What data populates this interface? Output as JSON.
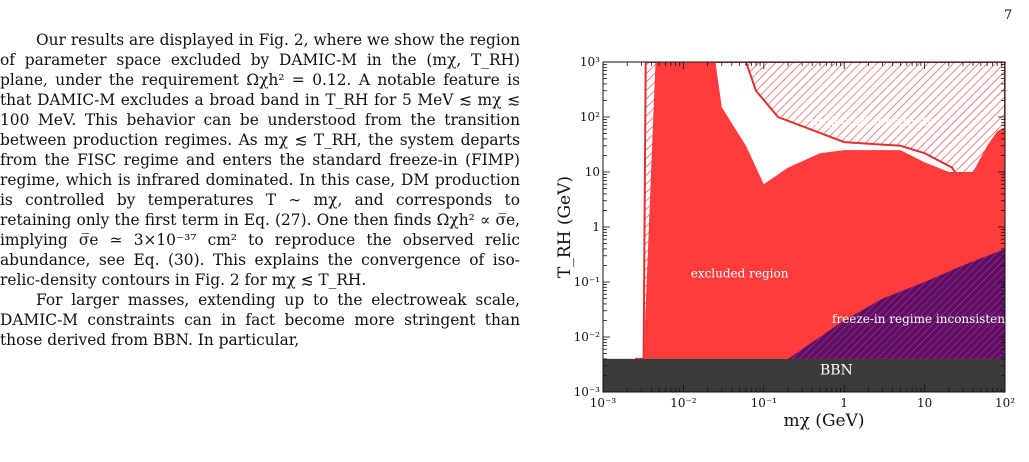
{
  "page_number": "7",
  "paragraphs": [
    "Our results are displayed in Fig. 2, where we show the region of parameter space excluded by DAMIC-M in the (mχ, T_RH) plane, under the requirement Ωχh² = 0.12. A notable feature is that DAMIC-M excludes a broad band in T_RH for 5 MeV ≲ mχ ≲ 100 MeV. This behavior can be understood from the transition between production regimes. As mχ ≲ T_RH, the system departs from the FISC regime and enters the standard freeze-in (FIMP) regime, which is infrared dominated. In this case, DM production is controlled by temperatures T ∼ mχ, and corresponds to retaining only the first term in Eq. (27). One then finds Ωχh² ∝ σ̅e, implying σ̅e ≃ 3×10⁻³⁷ cm² to reproduce the observed relic abundance, see Eq. (30). This explains the convergence of iso-relic-density contours in Fig. 2 for mχ ≲ T_RH.",
    "For larger masses, extending up to the electroweak scale, DAMIC-M constraints can in fact become more stringent than those derived from BBN. In particular,"
  ],
  "figure": {
    "ylabel": "T_RH (GeV)",
    "xlabel": "mχ (GeV)",
    "region_labels": {
      "projected": "projected sensitivity",
      "excluded": "excluded region",
      "freeze_in": "freeze-in regime inconsistent",
      "bbn": "BBN"
    },
    "colors": {
      "excluded": "#ff3b3b",
      "freeze_in": "#5e0f63",
      "bbn": "#3a3a3a",
      "hatch": "#d33"
    }
  },
  "chart_data": {
    "type": "area",
    "xscale": "log",
    "yscale": "log",
    "xlim": [
      0.001,
      100
    ],
    "ylim": [
      0.001,
      1000
    ],
    "xlabel": "mχ (GeV)",
    "ylabel": "T_RH (GeV)",
    "x_ticks": [
      {
        "v": 0.001,
        "label": "10⁻³"
      },
      {
        "v": 0.01,
        "label": "10⁻²"
      },
      {
        "v": 0.1,
        "label": "10⁻¹"
      },
      {
        "v": 1,
        "label": "1"
      },
      {
        "v": 10,
        "label": "10"
      },
      {
        "v": 100,
        "label": "10²"
      }
    ],
    "y_ticks": [
      {
        "v": 0.001,
        "label": "10⁻³"
      },
      {
        "v": 0.01,
        "label": "10⁻²"
      },
      {
        "v": 0.1,
        "label": "10⁻¹"
      },
      {
        "v": 1,
        "label": "1"
      },
      {
        "v": 10,
        "label": "10"
      },
      {
        "v": 100,
        "label": "10²"
      },
      {
        "v": 1000,
        "label": "10³"
      }
    ],
    "regions": [
      {
        "name": "projected sensitivity",
        "fill": "hatch",
        "points": [
          [
            0.0025,
            0.004
          ],
          [
            0.0032,
            0.004
          ],
          [
            0.0034,
            1000
          ],
          [
            100,
            1000
          ],
          [
            100,
            0.6
          ],
          [
            80,
            0.9
          ],
          [
            40,
            3
          ],
          [
            22,
            12
          ],
          [
            10,
            22
          ],
          [
            5,
            30
          ],
          [
            1,
            35
          ],
          [
            0.15,
            100
          ],
          [
            0.08,
            300
          ],
          [
            0.06,
            1000
          ],
          [
            0.0055,
            1000
          ],
          [
            0.0037,
            0.005
          ],
          [
            0.0035,
            0.004
          ]
        ]
      },
      {
        "name": "excluded region",
        "fill": "solid",
        "points": [
          [
            0.001,
            0.004
          ],
          [
            0.0032,
            0.004
          ],
          [
            0.0045,
            1000
          ],
          [
            0.025,
            1000
          ],
          [
            0.03,
            150
          ],
          [
            0.06,
            30
          ],
          [
            0.1,
            6
          ],
          [
            0.2,
            12
          ],
          [
            0.5,
            22
          ],
          [
            1,
            25
          ],
          [
            5,
            25
          ],
          [
            10,
            15
          ],
          [
            20,
            10
          ],
          [
            40,
            10
          ],
          [
            60,
            30
          ],
          [
            80,
            55
          ],
          [
            100,
            65
          ],
          [
            100,
            0.004
          ]
        ]
      },
      {
        "name": "freeze-in regime inconsistent",
        "fill": "purple",
        "points": [
          [
            0.2,
            0.004
          ],
          [
            0.4,
            0.008
          ],
          [
            1,
            0.02
          ],
          [
            3,
            0.05
          ],
          [
            10,
            0.1
          ],
          [
            30,
            0.2
          ],
          [
            100,
            0.4
          ],
          [
            100,
            0.004
          ]
        ]
      },
      {
        "name": "BBN",
        "fill": "dark",
        "points": [
          [
            0.001,
            0.001
          ],
          [
            100,
            0.001
          ],
          [
            100,
            0.004
          ],
          [
            0.001,
            0.004
          ]
        ]
      }
    ]
  }
}
